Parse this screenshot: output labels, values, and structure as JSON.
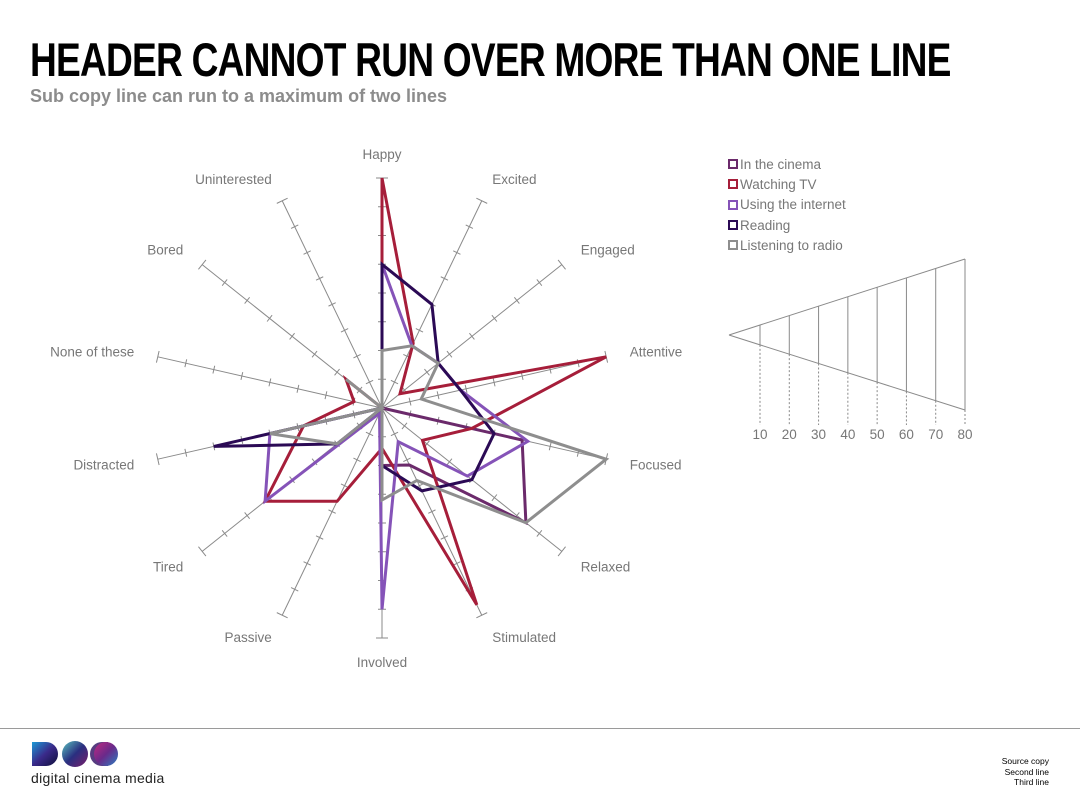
{
  "header": "HEADER CANNOT RUN OVER MORE THAN ONE LINE",
  "subcopy": "Sub copy line can run to a maximum of two lines",
  "legend": [
    {
      "name": "In the cinema",
      "color": "#6b2a6b"
    },
    {
      "name": "Watching TV",
      "color": "#a61e3a"
    },
    {
      "name": "Using the internet",
      "color": "#8553b8"
    },
    {
      "name": "Reading",
      "color": "#2b0a55"
    },
    {
      "name": "Listening to radio",
      "color": "#8e8e8e"
    }
  ],
  "scale_key": {
    "ticks": [
      "10",
      "20",
      "30",
      "40",
      "50",
      "60",
      "70",
      "80"
    ]
  },
  "chart_data": {
    "type": "radar",
    "axes": [
      "Happy",
      "Excited",
      "Engaged",
      "Attentive",
      "Focused",
      "Relaxed",
      "Stimulated",
      "Involved",
      "Passive",
      "Tired",
      "Distracted",
      "None of these",
      "Bored",
      "Uninterested"
    ],
    "rlim": [
      0,
      80
    ],
    "series": [
      {
        "name": "In the cinema",
        "color": "#6b2a6b",
        "values": [
          0,
          0,
          0,
          0,
          50,
          64,
          22,
          20,
          0,
          0,
          0,
          0,
          0,
          0
        ]
      },
      {
        "name": "Watching TV",
        "color": "#a61e3a",
        "values": [
          80,
          25,
          8,
          80,
          32,
          18,
          76,
          14,
          36,
          52,
          28,
          10,
          16,
          0
        ]
      },
      {
        "name": "Using the internet",
        "color": "#8553b8",
        "values": [
          50,
          24,
          25,
          28,
          52,
          38,
          13,
          70,
          2,
          52,
          40,
          0,
          0,
          0
        ]
      },
      {
        "name": "Reading",
        "color": "#2b0a55",
        "values": [
          50,
          40,
          25,
          28,
          40,
          40,
          32,
          20,
          0,
          20,
          60,
          0,
          0,
          0
        ]
      },
      {
        "name": "Listening to radio",
        "color": "#8e8e8e",
        "values": [
          20,
          24,
          25,
          14,
          80,
          64,
          28,
          32,
          0,
          20,
          40,
          0,
          16,
          0
        ]
      }
    ]
  },
  "source": [
    "Source copy",
    "Second line",
    "Third line"
  ],
  "logo": {
    "text": "digital cinema media"
  }
}
